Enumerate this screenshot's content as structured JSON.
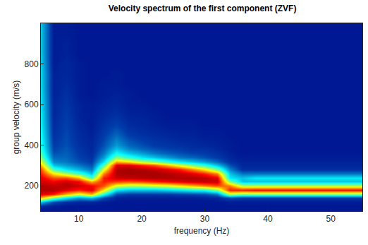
{
  "chart_data": {
    "type": "heatmap",
    "title": "Velocity spectrum of the first component (ZVF)",
    "x_label": "frequency (Hz)",
    "y_label": "group velocity (m/s)",
    "color": "Jet",
    "xlim": [
      4,
      55
    ],
    "ylim": [
      75,
      1000
    ],
    "xticks": [
      10,
      20,
      30,
      40,
      50
    ],
    "yticks": [
      200,
      400,
      600,
      800
    ],
    "zlim": [
      0,
      1
    ],
    "x": [
      4,
      6,
      8,
      10,
      12,
      14,
      16,
      18,
      20,
      22,
      24,
      26,
      28,
      30,
      32,
      34,
      36,
      38,
      40,
      42,
      44,
      46,
      48,
      50,
      52,
      54
    ],
    "y": [
      80,
      100,
      120,
      140,
      160,
      180,
      200,
      220,
      240,
      260,
      280,
      300,
      320,
      340,
      360,
      380,
      400,
      450,
      500,
      550,
      600,
      650,
      700,
      750,
      800,
      850,
      900,
      950,
      1000
    ],
    "z": [
      [
        0.05,
        0.05,
        0.05,
        0.05,
        0.05,
        0.05,
        0.05,
        0.05,
        0.05,
        0.05,
        0.05,
        0.05,
        0.05,
        0.05,
        0.05,
        0.05,
        0.05,
        0.05,
        0.05,
        0.05,
        0.05,
        0.05,
        0.05,
        0.05,
        0.05,
        0.05
      ],
      [
        0.08,
        0.06,
        0.05,
        0.05,
        0.05,
        0.05,
        0.05,
        0.05,
        0.05,
        0.05,
        0.05,
        0.05,
        0.05,
        0.05,
        0.05,
        0.05,
        0.05,
        0.05,
        0.05,
        0.05,
        0.05,
        0.05,
        0.05,
        0.05,
        0.05,
        0.05
      ],
      [
        0.3,
        0.15,
        0.1,
        0.08,
        0.08,
        0.06,
        0.05,
        0.05,
        0.05,
        0.05,
        0.05,
        0.05,
        0.05,
        0.05,
        0.05,
        0.06,
        0.06,
        0.06,
        0.06,
        0.06,
        0.06,
        0.06,
        0.06,
        0.06,
        0.06,
        0.06
      ],
      [
        0.7,
        0.5,
        0.35,
        0.25,
        0.3,
        0.15,
        0.07,
        0.06,
        0.06,
        0.06,
        0.06,
        0.06,
        0.06,
        0.07,
        0.08,
        0.15,
        0.12,
        0.12,
        0.12,
        0.12,
        0.12,
        0.12,
        0.12,
        0.12,
        0.12,
        0.12
      ],
      [
        0.9,
        0.85,
        0.7,
        0.6,
        0.7,
        0.4,
        0.15,
        0.12,
        0.12,
        0.12,
        0.12,
        0.13,
        0.14,
        0.15,
        0.2,
        0.55,
        0.5,
        0.5,
        0.5,
        0.5,
        0.5,
        0.5,
        0.5,
        0.5,
        0.5,
        0.5
      ],
      [
        0.95,
        0.95,
        0.9,
        0.85,
        0.9,
        0.65,
        0.35,
        0.3,
        0.3,
        0.3,
        0.32,
        0.35,
        0.38,
        0.4,
        0.5,
        0.85,
        0.85,
        0.87,
        0.87,
        0.87,
        0.87,
        0.87,
        0.87,
        0.87,
        0.87,
        0.87
      ],
      [
        0.95,
        0.93,
        0.95,
        0.92,
        0.88,
        0.8,
        0.6,
        0.55,
        0.55,
        0.58,
        0.6,
        0.65,
        0.7,
        0.75,
        0.8,
        0.75,
        0.55,
        0.55,
        0.55,
        0.55,
        0.55,
        0.55,
        0.55,
        0.55,
        0.55,
        0.55
      ],
      [
        0.92,
        0.88,
        0.92,
        0.88,
        0.7,
        0.85,
        0.82,
        0.8,
        0.82,
        0.85,
        0.88,
        0.9,
        0.92,
        0.93,
        0.93,
        0.5,
        0.3,
        0.3,
        0.3,
        0.3,
        0.3,
        0.3,
        0.3,
        0.3,
        0.3,
        0.3
      ],
      [
        0.9,
        0.8,
        0.8,
        0.7,
        0.45,
        0.85,
        0.92,
        0.93,
        0.94,
        0.95,
        0.95,
        0.95,
        0.95,
        0.94,
        0.9,
        0.35,
        0.3,
        0.35,
        0.35,
        0.35,
        0.35,
        0.35,
        0.35,
        0.35,
        0.35,
        0.35
      ],
      [
        0.85,
        0.65,
        0.55,
        0.45,
        0.3,
        0.75,
        0.95,
        0.96,
        0.96,
        0.96,
        0.95,
        0.93,
        0.9,
        0.85,
        0.75,
        0.3,
        0.2,
        0.2,
        0.2,
        0.2,
        0.2,
        0.2,
        0.2,
        0.2,
        0.2,
        0.2
      ],
      [
        0.8,
        0.45,
        0.35,
        0.28,
        0.2,
        0.6,
        0.95,
        0.96,
        0.95,
        0.93,
        0.9,
        0.85,
        0.75,
        0.65,
        0.5,
        0.22,
        0.1,
        0.1,
        0.1,
        0.1,
        0.1,
        0.1,
        0.1,
        0.1,
        0.1,
        0.1
      ],
      [
        0.7,
        0.3,
        0.25,
        0.2,
        0.15,
        0.45,
        0.9,
        0.9,
        0.85,
        0.8,
        0.7,
        0.6,
        0.5,
        0.42,
        0.3,
        0.15,
        0.08,
        0.08,
        0.08,
        0.08,
        0.08,
        0.08,
        0.08,
        0.08,
        0.08,
        0.08
      ],
      [
        0.6,
        0.22,
        0.2,
        0.15,
        0.12,
        0.33,
        0.7,
        0.65,
        0.55,
        0.5,
        0.42,
        0.35,
        0.3,
        0.25,
        0.18,
        0.1,
        0.07,
        0.07,
        0.07,
        0.07,
        0.07,
        0.07,
        0.07,
        0.07,
        0.07,
        0.07
      ],
      [
        0.5,
        0.18,
        0.18,
        0.13,
        0.1,
        0.25,
        0.5,
        0.42,
        0.35,
        0.3,
        0.25,
        0.2,
        0.18,
        0.15,
        0.12,
        0.08,
        0.06,
        0.06,
        0.06,
        0.06,
        0.06,
        0.06,
        0.06,
        0.06,
        0.06,
        0.06
      ],
      [
        0.45,
        0.15,
        0.17,
        0.12,
        0.09,
        0.2,
        0.38,
        0.3,
        0.25,
        0.2,
        0.17,
        0.15,
        0.13,
        0.12,
        0.1,
        0.07,
        0.05,
        0.05,
        0.05,
        0.05,
        0.05,
        0.05,
        0.05,
        0.05,
        0.05,
        0.05
      ],
      [
        0.42,
        0.13,
        0.16,
        0.11,
        0.08,
        0.17,
        0.3,
        0.22,
        0.18,
        0.15,
        0.13,
        0.12,
        0.1,
        0.1,
        0.08,
        0.06,
        0.05,
        0.05,
        0.05,
        0.05,
        0.05,
        0.05,
        0.05,
        0.05,
        0.05,
        0.05
      ],
      [
        0.4,
        0.12,
        0.15,
        0.1,
        0.08,
        0.15,
        0.25,
        0.18,
        0.15,
        0.12,
        0.11,
        0.1,
        0.09,
        0.08,
        0.07,
        0.06,
        0.05,
        0.05,
        0.05,
        0.05,
        0.05,
        0.05,
        0.05,
        0.05,
        0.05,
        0.05
      ],
      [
        0.38,
        0.1,
        0.14,
        0.09,
        0.07,
        0.12,
        0.18,
        0.12,
        0.1,
        0.09,
        0.08,
        0.07,
        0.07,
        0.06,
        0.06,
        0.05,
        0.05,
        0.05,
        0.05,
        0.05,
        0.05,
        0.05,
        0.05,
        0.05,
        0.05,
        0.05
      ],
      [
        0.36,
        0.09,
        0.13,
        0.08,
        0.06,
        0.1,
        0.13,
        0.09,
        0.08,
        0.07,
        0.06,
        0.06,
        0.06,
        0.05,
        0.05,
        0.05,
        0.05,
        0.05,
        0.05,
        0.05,
        0.05,
        0.05,
        0.05,
        0.05,
        0.05,
        0.05
      ],
      [
        0.35,
        0.08,
        0.12,
        0.07,
        0.06,
        0.08,
        0.1,
        0.07,
        0.07,
        0.06,
        0.05,
        0.05,
        0.05,
        0.05,
        0.05,
        0.05,
        0.05,
        0.05,
        0.05,
        0.05,
        0.05,
        0.05,
        0.05,
        0.05,
        0.05,
        0.05
      ],
      [
        0.34,
        0.08,
        0.11,
        0.07,
        0.06,
        0.07,
        0.08,
        0.06,
        0.06,
        0.05,
        0.05,
        0.05,
        0.05,
        0.05,
        0.05,
        0.05,
        0.05,
        0.05,
        0.05,
        0.05,
        0.05,
        0.05,
        0.05,
        0.05,
        0.05,
        0.05
      ],
      [
        0.33,
        0.07,
        0.1,
        0.06,
        0.05,
        0.06,
        0.07,
        0.06,
        0.05,
        0.05,
        0.05,
        0.05,
        0.05,
        0.05,
        0.05,
        0.05,
        0.05,
        0.05,
        0.05,
        0.05,
        0.05,
        0.05,
        0.05,
        0.05,
        0.05,
        0.05
      ],
      [
        0.32,
        0.07,
        0.09,
        0.06,
        0.05,
        0.06,
        0.06,
        0.05,
        0.05,
        0.05,
        0.05,
        0.05,
        0.05,
        0.05,
        0.05,
        0.05,
        0.05,
        0.05,
        0.05,
        0.05,
        0.05,
        0.05,
        0.05,
        0.05,
        0.05,
        0.05
      ],
      [
        0.32,
        0.07,
        0.08,
        0.06,
        0.05,
        0.05,
        0.06,
        0.05,
        0.05,
        0.05,
        0.05,
        0.05,
        0.05,
        0.05,
        0.05,
        0.05,
        0.05,
        0.05,
        0.05,
        0.05,
        0.05,
        0.05,
        0.05,
        0.05,
        0.05,
        0.05
      ],
      [
        0.31,
        0.06,
        0.08,
        0.06,
        0.05,
        0.05,
        0.05,
        0.05,
        0.05,
        0.05,
        0.05,
        0.05,
        0.05,
        0.05,
        0.05,
        0.05,
        0.05,
        0.05,
        0.05,
        0.05,
        0.05,
        0.05,
        0.05,
        0.05,
        0.05,
        0.05
      ],
      [
        0.3,
        0.06,
        0.07,
        0.05,
        0.05,
        0.05,
        0.05,
        0.05,
        0.05,
        0.05,
        0.05,
        0.05,
        0.05,
        0.05,
        0.05,
        0.05,
        0.05,
        0.05,
        0.05,
        0.05,
        0.05,
        0.05,
        0.05,
        0.05,
        0.05,
        0.05
      ],
      [
        0.3,
        0.06,
        0.07,
        0.05,
        0.05,
        0.05,
        0.05,
        0.05,
        0.05,
        0.05,
        0.05,
        0.05,
        0.05,
        0.05,
        0.05,
        0.05,
        0.05,
        0.05,
        0.05,
        0.05,
        0.05,
        0.05,
        0.05,
        0.05,
        0.05,
        0.05
      ],
      [
        0.3,
        0.06,
        0.06,
        0.05,
        0.05,
        0.05,
        0.05,
        0.05,
        0.05,
        0.05,
        0.05,
        0.05,
        0.05,
        0.05,
        0.05,
        0.05,
        0.05,
        0.05,
        0.05,
        0.05,
        0.05,
        0.05,
        0.05,
        0.05,
        0.05,
        0.05
      ],
      [
        0.3,
        0.06,
        0.06,
        0.05,
        0.05,
        0.05,
        0.05,
        0.05,
        0.05,
        0.05,
        0.05,
        0.05,
        0.05,
        0.05,
        0.05,
        0.05,
        0.05,
        0.05,
        0.05,
        0.05,
        0.05,
        0.05,
        0.05,
        0.05,
        0.05,
        0.05
      ]
    ]
  }
}
